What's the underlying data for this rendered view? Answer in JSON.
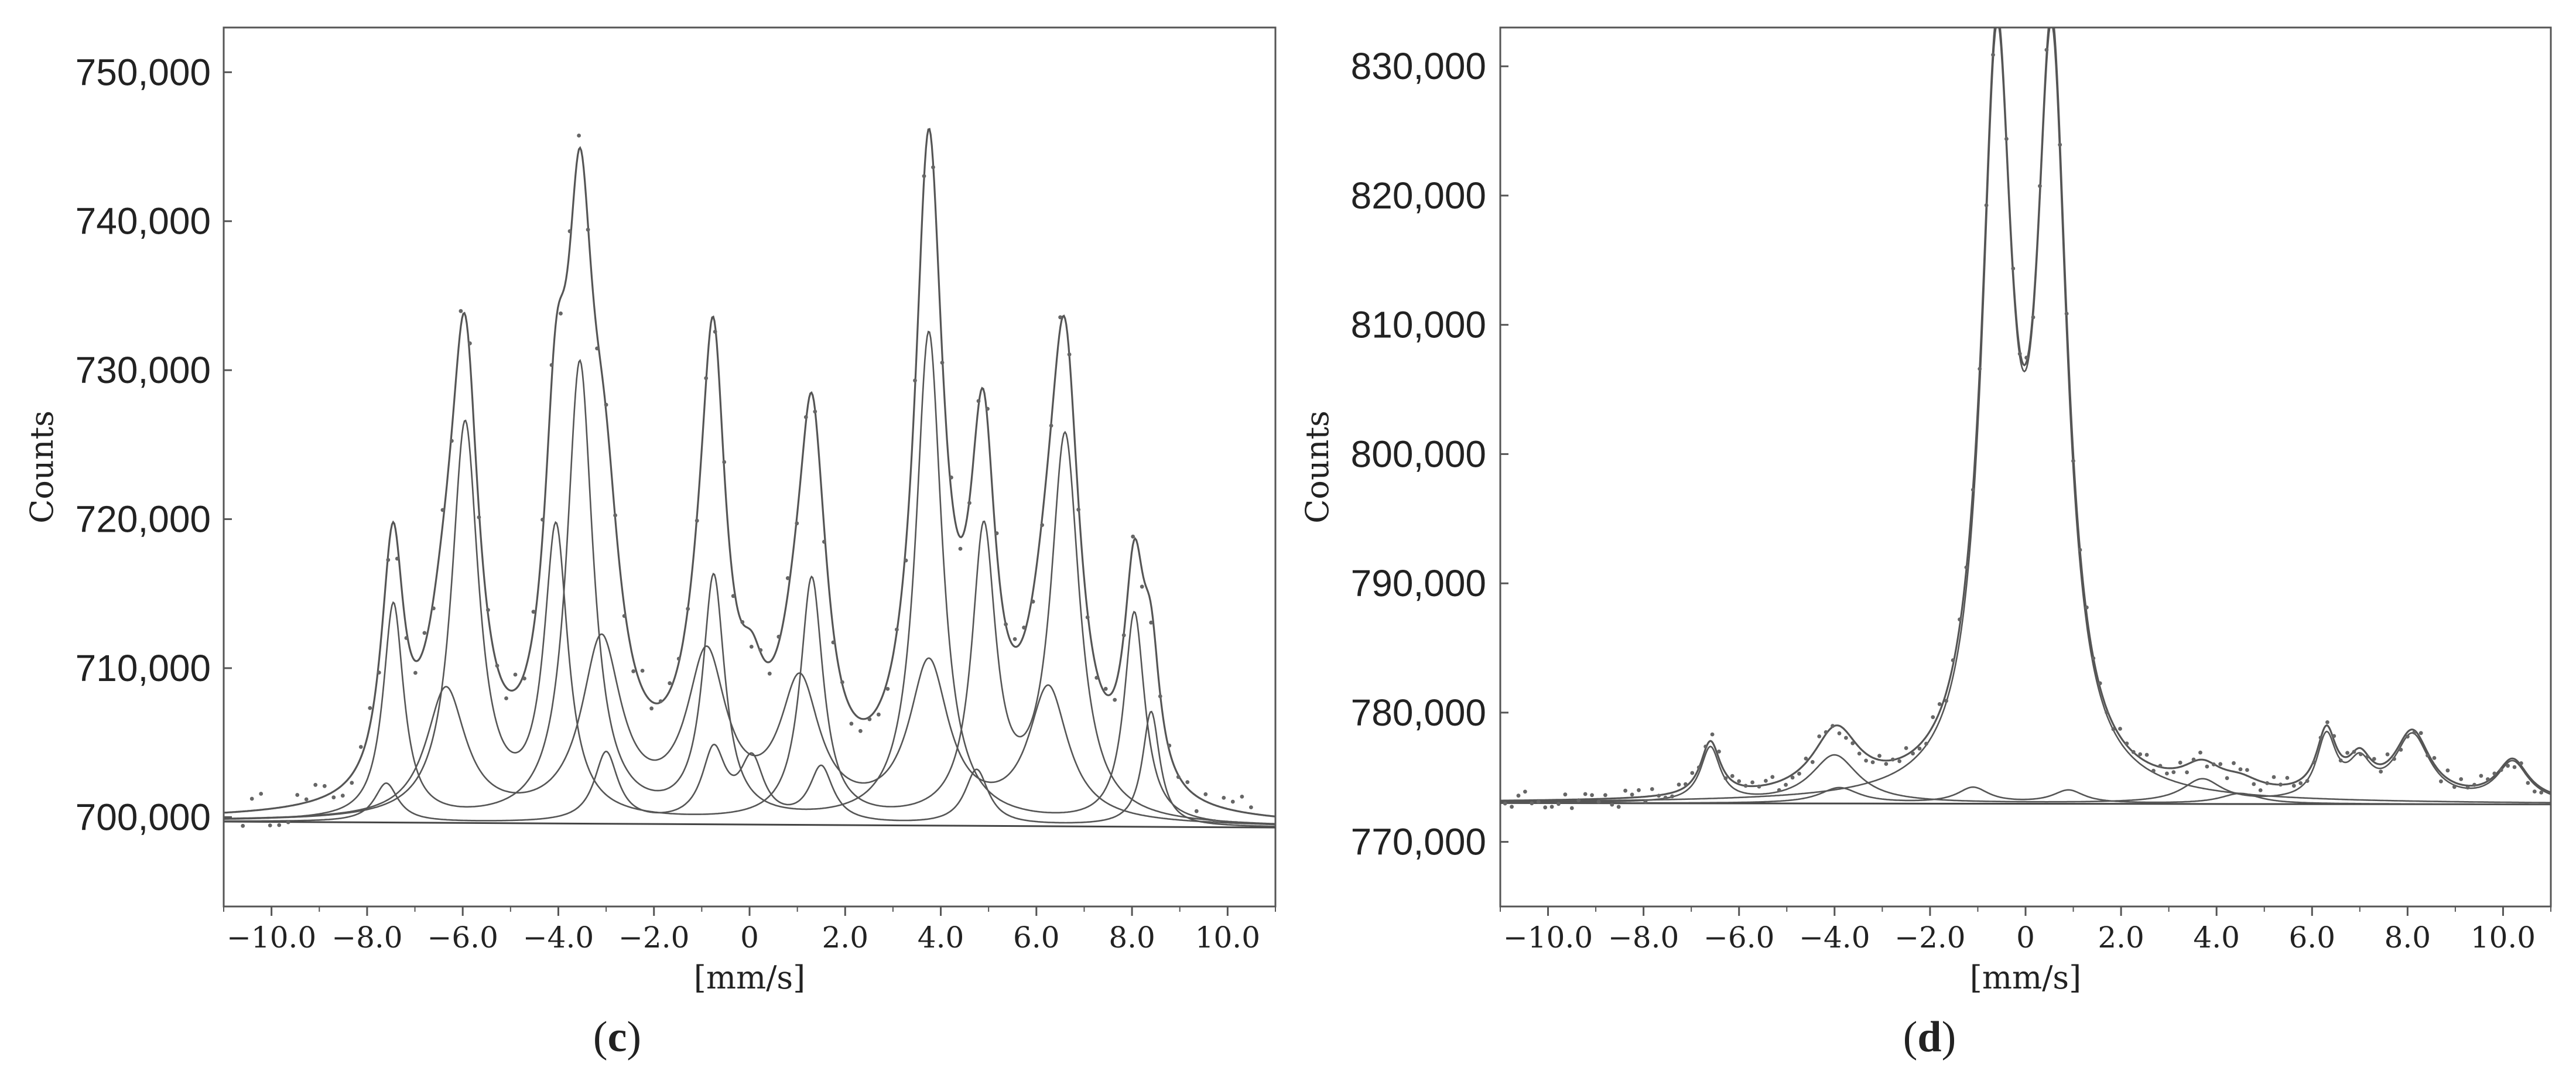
{
  "chart_data": [
    {
      "type": "line",
      "panel_label": {
        "open": "(",
        "letter": "c",
        "close": ")"
      },
      "xlabel": "[mm/s]",
      "ylabel": "Counts",
      "xlim": [
        -11,
        11
      ],
      "ylim": [
        694000,
        753000
      ],
      "x_ticks": [
        -10,
        -8,
        -6,
        -4,
        -2,
        0,
        2,
        4,
        6,
        8,
        10
      ],
      "x_tick_labels": [
        "−10.0",
        "−8.0",
        "−6.0",
        "−4.0",
        "−2.0",
        "0",
        "2.0",
        "4.0",
        "6.0",
        "8.0",
        "10.0"
      ],
      "y_ticks": [
        700000,
        710000,
        720000,
        730000,
        740000,
        750000
      ],
      "y_tick_labels": [
        "700,000",
        "710,000",
        "720,000",
        "730,000",
        "740,000",
        "750,000"
      ],
      "grid": false,
      "legend": false,
      "line_color": "#555555",
      "point_color": "#666666",
      "baseline": {
        "start": 699700,
        "end": 699300
      },
      "components": [
        {
          "peaks": [
            {
              "x": -7.45,
              "amp": 14500,
              "w": 0.26
            },
            {
              "x": -3.55,
              "amp": 30800,
              "w": 0.33
            },
            {
              "x": -0.75,
              "amp": 16200,
              "w": 0.28
            },
            {
              "x": 3.75,
              "amp": 33000,
              "w": 0.33
            },
            {
              "x": 8.05,
              "amp": 14200,
              "w": 0.26
            }
          ]
        },
        {
          "peaks": [
            {
              "x": -5.95,
              "amp": 26500,
              "w": 0.34
            },
            {
              "x": -4.05,
              "amp": 19300,
              "w": 0.3
            },
            {
              "x": 1.3,
              "amp": 16300,
              "w": 0.29
            },
            {
              "x": 4.9,
              "amp": 19200,
              "w": 0.3
            },
            {
              "x": 6.6,
              "amp": 25800,
              "w": 0.36
            }
          ]
        },
        {
          "peaks": [
            {
              "x": -6.35,
              "amp": 8700,
              "w": 0.5
            },
            {
              "x": -3.1,
              "amp": 11800,
              "w": 0.5
            },
            {
              "x": -0.9,
              "amp": 10600,
              "w": 0.5
            },
            {
              "x": 1.05,
              "amp": 8900,
              "w": 0.5
            },
            {
              "x": 3.75,
              "amp": 10400,
              "w": 0.5
            },
            {
              "x": 6.25,
              "amp": 8900,
              "w": 0.5
            }
          ]
        },
        {
          "peaks": [
            {
              "x": -7.6,
              "amp": 2600,
              "w": 0.3
            },
            {
              "x": -3.0,
              "amp": 4700,
              "w": 0.3
            },
            {
              "x": -0.75,
              "amp": 4700,
              "w": 0.3
            },
            {
              "x": 0.05,
              "amp": 4000,
              "w": 0.3
            },
            {
              "x": 1.5,
              "amp": 3700,
              "w": 0.3
            },
            {
              "x": 4.75,
              "amp": 3700,
              "w": 0.3
            },
            {
              "x": 8.4,
              "amp": 7700,
              "w": 0.22
            }
          ]
        }
      ],
      "points": {
        "x_start": -10.6,
        "x_end": 10.6,
        "step": 0.19,
        "noise": 1200
      }
    },
    {
      "type": "line",
      "panel_label": {
        "open": "(",
        "letter": "d",
        "close": ")"
      },
      "xlabel": "[mm/s]",
      "ylabel": "Counts",
      "xlim": [
        -11,
        11
      ],
      "ylim": [
        765000,
        833000
      ],
      "x_ticks": [
        -10,
        -8,
        -6,
        -4,
        -2,
        0,
        2,
        4,
        6,
        8,
        10
      ],
      "x_tick_labels": [
        "−10.0",
        "−8.0",
        "−6.0",
        "−4.0",
        "−2.0",
        "0",
        "2.0",
        "4.0",
        "6.0",
        "8.0",
        "10.0"
      ],
      "y_ticks": [
        770000,
        780000,
        790000,
        800000,
        810000,
        820000,
        830000
      ],
      "y_tick_labels": [
        "770,000",
        "780,000",
        "790,000",
        "800,000",
        "810,000",
        "820,000",
        "830,000"
      ],
      "grid": false,
      "legend": false,
      "line_color": "#555555",
      "point_color": "#666666",
      "baseline": {
        "start": 773000,
        "end": 772900
      },
      "components": [
        {
          "peaks": [
            {
              "x": -0.6,
              "amp": 55000,
              "w": 0.38
            },
            {
              "x": 0.55,
              "amp": 55000,
              "w": 0.38
            }
          ]
        },
        {
          "peaks": [
            {
              "x": -6.6,
              "amp": 4200,
              "w": 0.25
            },
            {
              "x": -4.0,
              "amp": 3700,
              "w": 0.6
            },
            {
              "x": 3.7,
              "amp": 1800,
              "w": 0.5
            },
            {
              "x": 6.3,
              "amp": 4800,
              "w": 0.25
            },
            {
              "x": 7.0,
              "amp": 2600,
              "w": 0.3
            },
            {
              "x": 8.1,
              "amp": 5100,
              "w": 0.45
            },
            {
              "x": 10.2,
              "amp": 3100,
              "w": 0.4
            }
          ]
        },
        {
          "peaks": [
            {
              "x": -3.9,
              "amp": 1200,
              "w": 0.5
            },
            {
              "x": -1.1,
              "amp": 1200,
              "w": 0.4
            },
            {
              "x": 0.9,
              "amp": 1000,
              "w": 0.4
            },
            {
              "x": 4.5,
              "amp": 800,
              "w": 0.5
            }
          ]
        }
      ],
      "points": {
        "x_start": -10.9,
        "x_end": 10.9,
        "step": 0.14,
        "noise": 700
      }
    }
  ]
}
